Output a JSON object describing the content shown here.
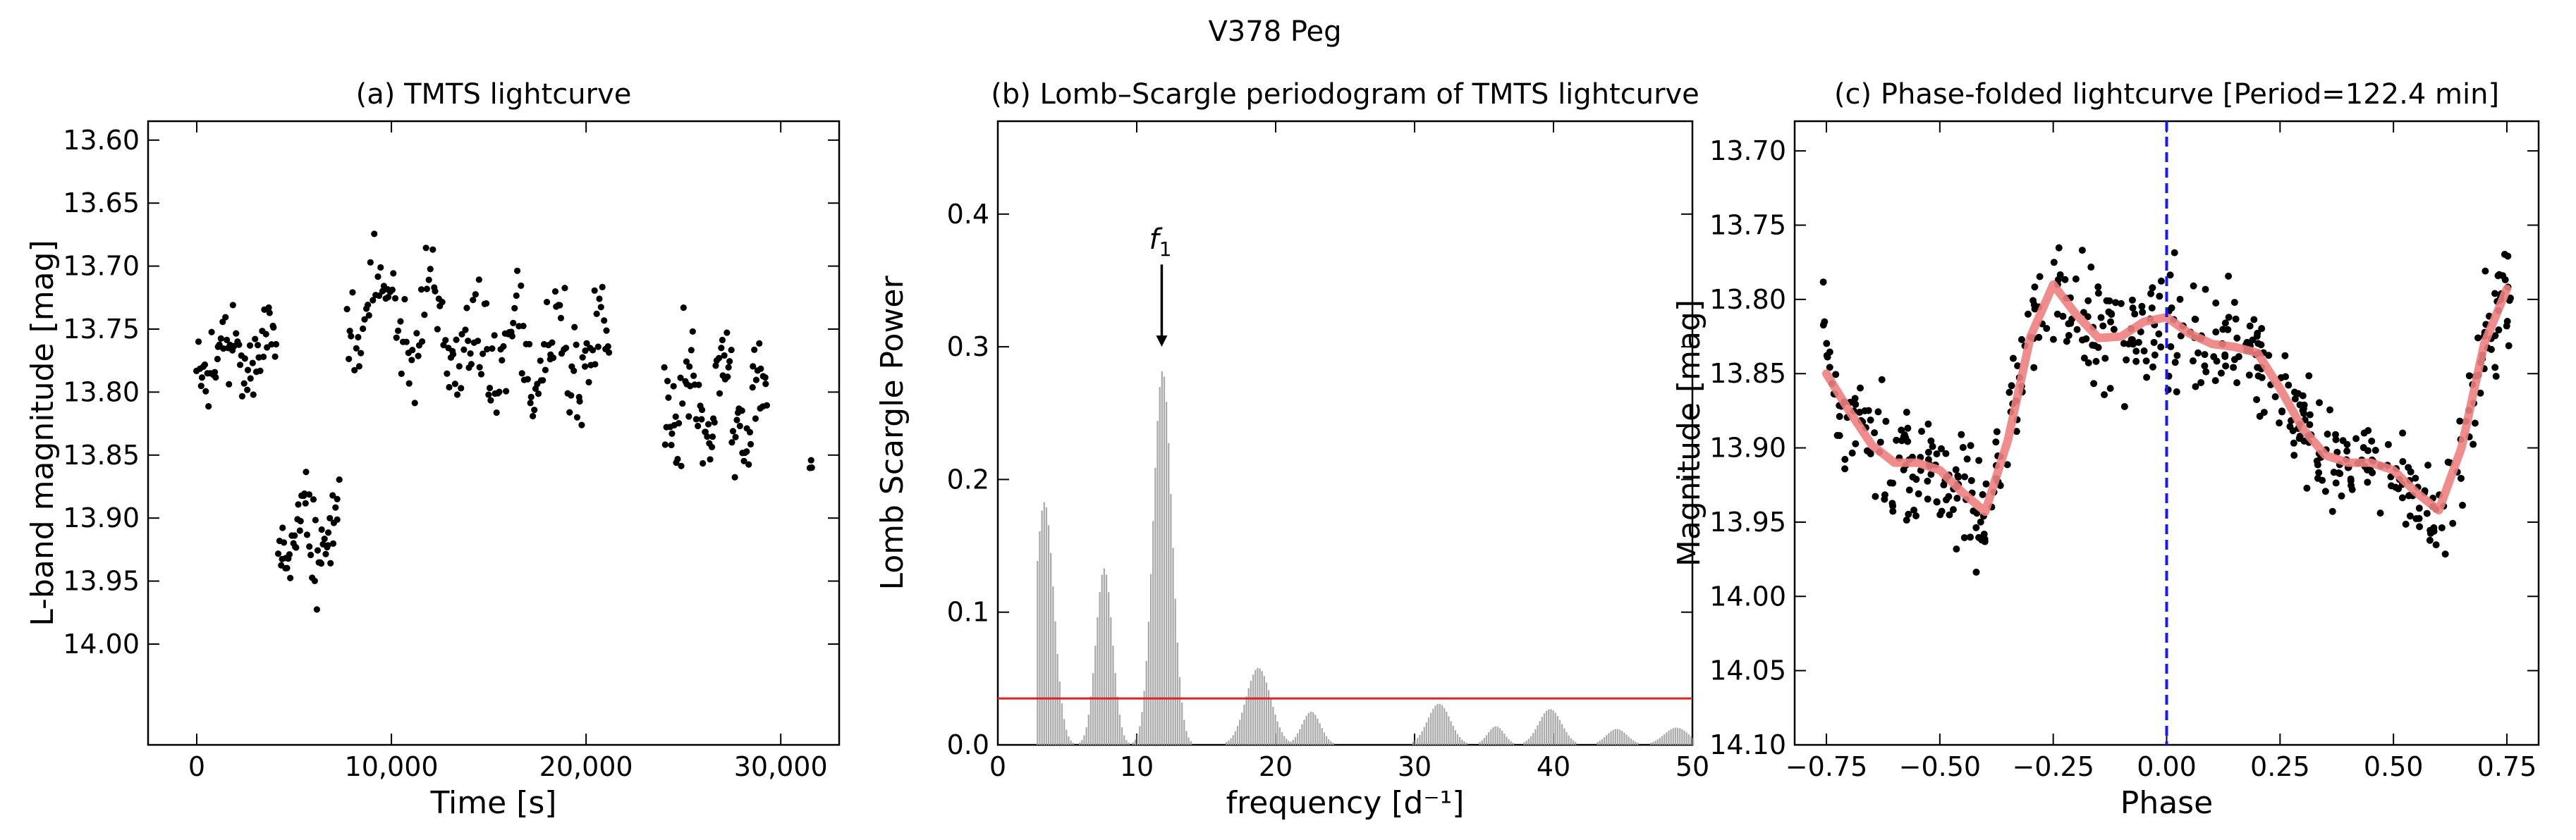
{
  "figure_title": "V378 Peg",
  "chart_data": [
    {
      "id": "a",
      "type": "scatter",
      "title": "(a) TMTS lightcurve",
      "xlabel": "Time [s]",
      "ylabel": "L-band magnitude [mag]",
      "xlim": [
        -2500,
        33000
      ],
      "ylim": [
        14.08,
        13.585
      ],
      "y_inverted": true,
      "xticks": [
        0,
        10000,
        20000,
        30000
      ],
      "xtick_labels": [
        "0",
        "10,000",
        "20,000",
        "30,000"
      ],
      "yticks": [
        13.6,
        13.65,
        13.7,
        13.75,
        13.8,
        13.85,
        13.9,
        13.95,
        14.0
      ],
      "ytick_labels": [
        "13.60",
        "13.65",
        "13.70",
        "13.75",
        "13.80",
        "13.85",
        "13.90",
        "13.95",
        "14.00"
      ],
      "marker_color": "#000000",
      "segments": [
        {
          "t0": 0,
          "t1": 4100,
          "n": 60,
          "base": 13.77,
          "spread": 0.055
        },
        {
          "t0": 4200,
          "t1": 7300,
          "n": 55,
          "base": 13.915,
          "spread": 0.055
        },
        {
          "t0": 7700,
          "t1": 12600,
          "n": 60,
          "base": 13.74,
          "spread": 0.07
        },
        {
          "t0": 12700,
          "t1": 21200,
          "n": 120,
          "base": 13.77,
          "spread": 0.075
        },
        {
          "t0": 24000,
          "t1": 29300,
          "n": 90,
          "base": 13.81,
          "spread": 0.08
        },
        {
          "t0": 31500,
          "t1": 31600,
          "n": 3,
          "base": 13.86,
          "spread": 0.05
        }
      ]
    },
    {
      "id": "b",
      "type": "bar",
      "title": "(b) Lomb–Scargle periodogram of TMTS lightcurve",
      "xlabel": "frequency [d⁻¹]",
      "ylabel": "Lomb Scargle Power",
      "xlim": [
        0,
        50
      ],
      "ylim": [
        0,
        0.47
      ],
      "xticks": [
        0,
        10,
        20,
        30,
        40,
        50
      ],
      "xtick_labels": [
        "0",
        "10",
        "20",
        "30",
        "40",
        "50"
      ],
      "yticks": [
        0.0,
        0.1,
        0.2,
        0.3,
        0.4
      ],
      "ytick_labels": [
        "0.0",
        "0.1",
        "0.2",
        "0.3",
        "0.4"
      ],
      "bar_color": "#aaaaaa",
      "threshold": 0.035,
      "threshold_color": "#dd2222",
      "peaks": [
        {
          "freq": 3.3,
          "power": 0.183,
          "width": 0.9
        },
        {
          "freq": 7.6,
          "power": 0.133,
          "width": 0.8
        },
        {
          "freq": 11.8,
          "power": 0.282,
          "width": 0.9
        },
        {
          "freq": 18.7,
          "power": 0.058,
          "width": 1.2
        },
        {
          "freq": 22.5,
          "power": 0.025,
          "width": 0.9
        },
        {
          "freq": 31.7,
          "power": 0.031,
          "width": 1.1
        },
        {
          "freq": 35.8,
          "power": 0.014,
          "width": 0.8
        },
        {
          "freq": 39.7,
          "power": 0.027,
          "width": 1.1
        },
        {
          "freq": 44.5,
          "power": 0.012,
          "width": 1.0
        },
        {
          "freq": 48.8,
          "power": 0.013,
          "width": 1.2
        }
      ],
      "annotation": {
        "label_main": "f",
        "label_sub": "1",
        "freq": 11.8,
        "arrow_top": 0.378,
        "arrow_bottom": 0.3
      }
    },
    {
      "id": "c",
      "type": "scatter",
      "title": "(c) Phase-folded lightcurve [Period=122.4 min]",
      "xlabel": "Phase",
      "ylabel": "Magnitude [mag]",
      "xlim": [
        -0.82,
        0.82
      ],
      "ylim": [
        14.1,
        13.68
      ],
      "y_inverted": true,
      "xticks": [
        -0.75,
        -0.5,
        -0.25,
        0.0,
        0.25,
        0.5,
        0.75
      ],
      "xtick_labels": [
        "−0.75",
        "−0.50",
        "−0.25",
        "0.00",
        "0.25",
        "0.50",
        "0.75"
      ],
      "yticks": [
        13.7,
        13.75,
        13.8,
        13.85,
        13.9,
        13.95,
        14.0,
        14.05,
        14.1
      ],
      "ytick_labels": [
        "13.70",
        "13.75",
        "13.80",
        "13.85",
        "13.90",
        "13.95",
        "14.00",
        "14.05",
        "14.10"
      ],
      "marker_color": "#000000",
      "n_points": 520,
      "fit_color": "#f08080",
      "vline_x": 0.0,
      "vline_color": "#1a1aee",
      "fit_curve": [
        [
          -0.75,
          13.85
        ],
        [
          -0.7,
          13.875
        ],
        [
          -0.65,
          13.898
        ],
        [
          -0.6,
          13.91
        ],
        [
          -0.55,
          13.91
        ],
        [
          -0.5,
          13.915
        ],
        [
          -0.45,
          13.93
        ],
        [
          -0.4,
          13.943
        ],
        [
          -0.35,
          13.895
        ],
        [
          -0.3,
          13.825
        ],
        [
          -0.25,
          13.79
        ],
        [
          -0.2,
          13.81
        ],
        [
          -0.15,
          13.826
        ],
        [
          -0.1,
          13.825
        ],
        [
          -0.05,
          13.815
        ],
        [
          0.0,
          13.812
        ],
        [
          0.05,
          13.823
        ],
        [
          0.1,
          13.83
        ],
        [
          0.15,
          13.832
        ],
        [
          0.2,
          13.836
        ],
        [
          0.25,
          13.86
        ],
        [
          0.3,
          13.887
        ],
        [
          0.35,
          13.905
        ],
        [
          0.4,
          13.91
        ],
        [
          0.45,
          13.91
        ],
        [
          0.5,
          13.915
        ],
        [
          0.55,
          13.93
        ],
        [
          0.6,
          13.942
        ],
        [
          0.65,
          13.9
        ],
        [
          0.7,
          13.83
        ],
        [
          0.75,
          13.793
        ]
      ]
    }
  ]
}
